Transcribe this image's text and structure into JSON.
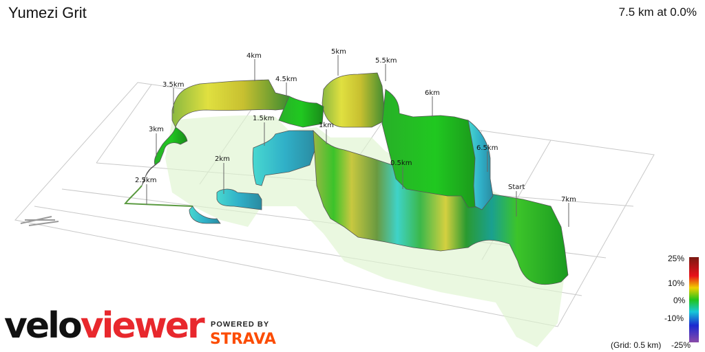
{
  "header": {
    "title": "Yumezi Grit",
    "summary": "7.5 km at 0.0%"
  },
  "km_markers": [
    "Start",
    "0.5km",
    "1km",
    "1.5km",
    "2km",
    "2.5km",
    "3km",
    "3.5km",
    "4km",
    "4.5km",
    "5km",
    "5.5km",
    "6km",
    "6.5km",
    "7km"
  ],
  "legend": {
    "ticks": [
      "25%",
      "10%",
      "0%",
      "-10%"
    ],
    "bottom_tick": "-25%",
    "grid_note": "(Grid: 0.5 km)",
    "colors": {
      "top": "#7a1a12",
      "high": "#e8101a",
      "mid_high": "#f0d000",
      "zero": "#22c41a",
      "mid_low": "#18c8d8",
      "low": "#1a28d0",
      "bottom": "#8a4aa8"
    }
  },
  "branding": {
    "logo_part1": "velo",
    "logo_part2": "viewer",
    "powered_by": "POWERED BY",
    "partner": "STRAVA"
  },
  "icons": [
    "north-arrow-icon"
  ]
}
